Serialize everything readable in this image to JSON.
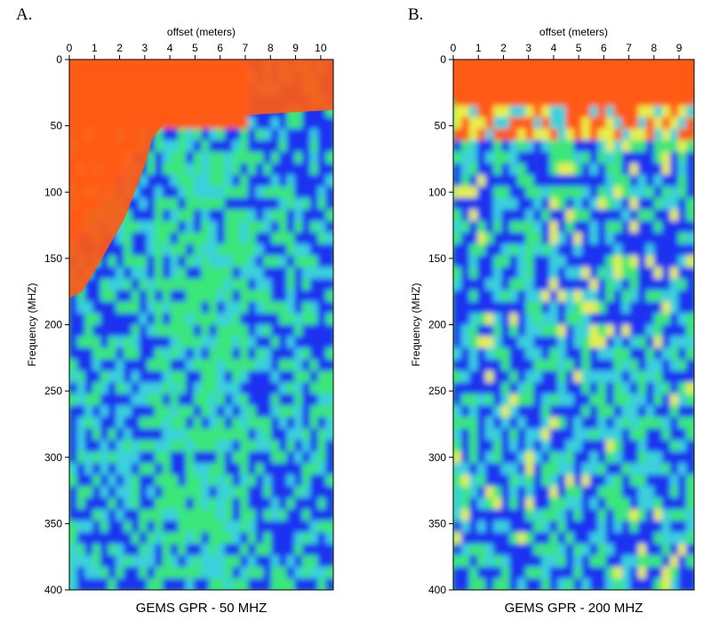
{
  "colors": {
    "orange": "#ff5a14",
    "yellow": "#e6f046",
    "green": "#3ae67a",
    "cyan": "#3ad0dc",
    "blue": "#1a32f0",
    "mid_green": "#46e07a"
  },
  "chart_data": [
    {
      "type": "heatmap",
      "panel_label": "A.",
      "title": "GEMS GPR - 50 MHZ",
      "xlabel": "offset (meters)",
      "ylabel": "Frequency (MHZ)",
      "x_ticks": [
        0,
        1,
        2,
        3,
        4,
        5,
        6,
        7,
        8,
        9,
        10
      ],
      "y_ticks": [
        0,
        50,
        100,
        150,
        200,
        250,
        300,
        350,
        400
      ],
      "xlim": [
        0,
        10.5
      ],
      "ylim": [
        0,
        400
      ],
      "x_position": "top",
      "grid": false,
      "colorscale": [
        "blue",
        "cyan",
        "green",
        "yellow",
        "orange"
      ]
    },
    {
      "type": "heatmap",
      "panel_label": "B.",
      "title": "GEMS GPR - 200 MHZ",
      "xlabel": "offset (meters)",
      "ylabel": "Frequency (MHZ)",
      "x_ticks": [
        0,
        1,
        2,
        3,
        4,
        5,
        6,
        7,
        8,
        9
      ],
      "y_ticks": [
        0,
        50,
        100,
        150,
        200,
        250,
        300,
        350,
        400
      ],
      "xlim": [
        0,
        9.6
      ],
      "ylim": [
        0,
        400
      ],
      "x_position": "top",
      "grid": false,
      "colorscale": [
        "blue",
        "cyan",
        "green",
        "yellow",
        "orange"
      ]
    }
  ]
}
